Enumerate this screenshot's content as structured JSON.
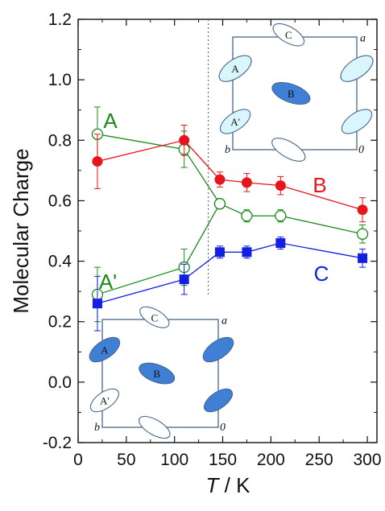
{
  "chart_data": {
    "type": "line",
    "xlabel_var": "T",
    "xlabel_rest": " / K",
    "ylabel": "Molecular Charge",
    "xlim": [
      0,
      310
    ],
    "ylim": [
      -0.2,
      1.2
    ],
    "xticks": [
      0,
      50,
      100,
      150,
      200,
      250,
      300
    ],
    "yticks": [
      -0.2,
      0.0,
      0.2,
      0.4,
      0.6,
      0.8,
      1.0,
      1.2
    ],
    "ytick_labels": [
      "-0.2",
      "0.0",
      "0.2",
      "0.4",
      "0.6",
      "0.8",
      "1.0",
      "1.2"
    ],
    "grid": false,
    "transition_line_x": 135,
    "series": [
      {
        "name": "A",
        "color": "#1a8a1a",
        "marker": "open-circle",
        "x": [
          20,
          110,
          147,
          175,
          210,
          295
        ],
        "y": [
          0.82,
          0.77,
          0.59,
          0.55,
          0.55,
          0.49
        ],
        "err": [
          0.09,
          0.06,
          0.015,
          0.02,
          0.02,
          0.03
        ]
      },
      {
        "name": "A'",
        "color": "#1a8a1a",
        "marker": "open-circle",
        "x": [
          20,
          110,
          147
        ],
        "y": [
          0.29,
          0.38,
          0.59
        ],
        "err": [
          0.09,
          0.06,
          0.015
        ]
      },
      {
        "name": "B",
        "color": "#e8141b",
        "marker": "filled-circle",
        "x": [
          20,
          110,
          147,
          175,
          210,
          295
        ],
        "y": [
          0.73,
          0.8,
          0.67,
          0.66,
          0.65,
          0.57
        ],
        "err": [
          0.09,
          0.05,
          0.025,
          0.03,
          0.03,
          0.04
        ]
      },
      {
        "name": "C",
        "color": "#1420e0",
        "marker": "filled-square",
        "x": [
          20,
          110,
          147,
          175,
          210,
          295
        ],
        "y": [
          0.26,
          0.34,
          0.43,
          0.43,
          0.46,
          0.41
        ],
        "err": [
          0.09,
          0.05,
          0.02,
          0.02,
          0.02,
          0.03
        ]
      }
    ],
    "insets": [
      {
        "position": "top-right",
        "cell_labels": {
          "A": "A",
          "A2": "A'",
          "B": "B",
          "C": "C"
        },
        "axis_labels": {
          "a": "a",
          "b": "b",
          "origin": "0"
        },
        "fills": {
          "A": "#d8f6fc",
          "A2": "#d8f6fc",
          "B": "#3f7fd6",
          "C": "#ffffff",
          "corner": "#d8f6fc",
          "bottom": "#ffffff"
        }
      },
      {
        "position": "bottom-left",
        "cell_labels": {
          "A": "A",
          "A2": "A'",
          "B": "B",
          "C": "C"
        },
        "axis_labels": {
          "a": "a",
          "b": "b",
          "origin": "0"
        },
        "fills": {
          "A": "#3f7fd6",
          "A2": "#ffffff",
          "B": "#3f7fd6",
          "C": "#ffffff",
          "corner": "#3f7fd6",
          "bottom": "#ffffff"
        }
      }
    ]
  }
}
